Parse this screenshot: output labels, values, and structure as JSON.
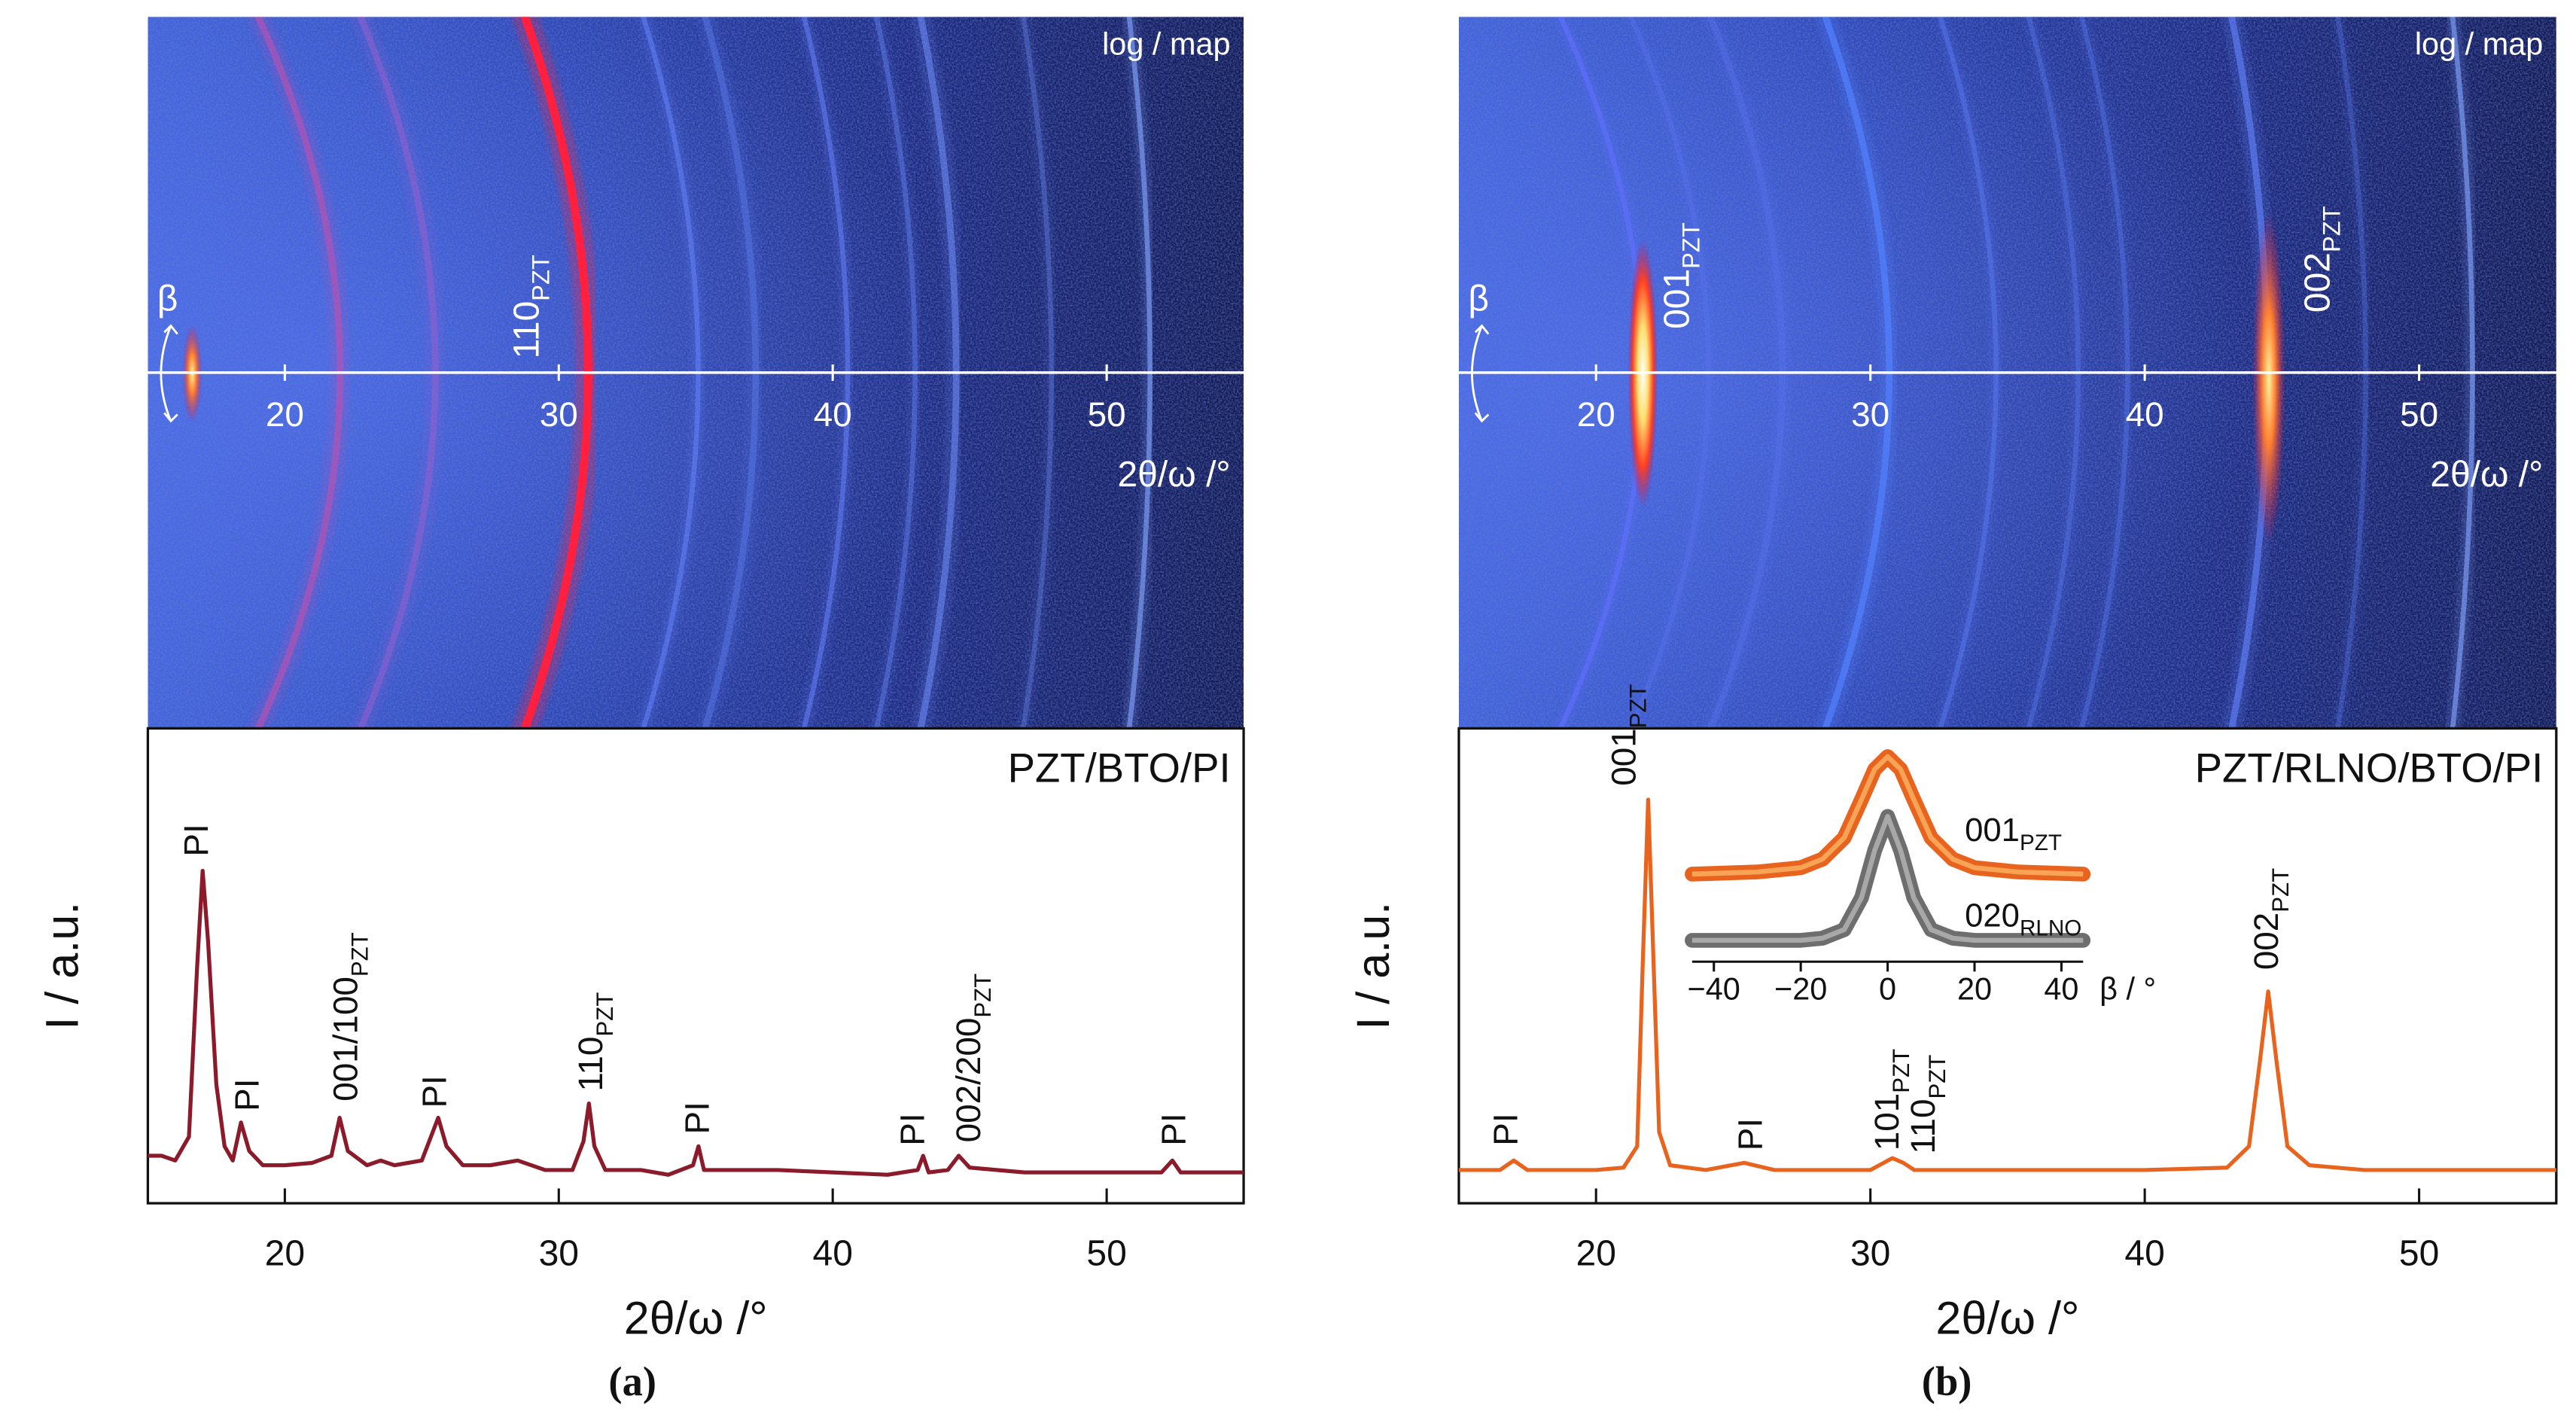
{
  "chart_data": [
    {
      "type": "line",
      "title": "PZT/BTO/PI",
      "xlabel": "2θ/ω /°",
      "ylabel": "I / a.u.",
      "xlim": [
        15,
        55
      ],
      "ylim": [
        0,
        100
      ],
      "xticks": [
        20,
        30,
        40,
        50
      ],
      "color": "#8b1a2a",
      "x": [
        15,
        15.5,
        16,
        16.5,
        16.8,
        17.0,
        17.2,
        17.5,
        17.8,
        18.1,
        18.4,
        18.7,
        19.2,
        20,
        21,
        21.7,
        22,
        22.3,
        23,
        23.5,
        24,
        25,
        25.4,
        25.6,
        25.9,
        26.5,
        27.5,
        28.5,
        29.5,
        30.5,
        30.9,
        31.1,
        31.3,
        31.7,
        33,
        34,
        34.9,
        35.1,
        35.3,
        37,
        38,
        40,
        42,
        43.1,
        43.3,
        43.5,
        44.2,
        44.6,
        45,
        47,
        50,
        52,
        52.4,
        52.7,
        55
      ],
      "values": [
        10,
        10,
        9,
        14,
        50,
        70,
        55,
        25,
        12,
        9,
        17,
        11,
        8,
        8,
        8.5,
        10,
        18,
        11,
        8,
        9,
        8,
        9,
        15,
        18,
        12,
        8,
        8,
        9,
        7,
        7,
        13,
        21,
        12,
        7,
        7,
        6,
        8,
        12,
        7,
        7,
        7,
        6.5,
        6,
        7,
        10,
        6.5,
        7,
        10,
        7.5,
        6.5,
        6.5,
        6.5,
        9,
        6.5,
        6.5
      ],
      "annotations": [
        {
          "text": "PI"
        },
        {
          "text": "PI"
        },
        {
          "text": "001/100",
          "sub": "PZT"
        },
        {
          "text": "PI"
        },
        {
          "text": "110",
          "sub": "PZT"
        },
        {
          "text": "PI"
        },
        {
          "text": "PI"
        },
        {
          "text": "002/200",
          "sub": "PZT"
        },
        {
          "text": "PI"
        }
      ]
    },
    {
      "type": "line",
      "title": "PZT/RLNO/BTO/PI",
      "xlabel": "2θ/ω /°",
      "ylabel": "I / a.u.",
      "xlim": [
        15,
        55
      ],
      "ylim": [
        0,
        100
      ],
      "xticks": [
        20,
        30,
        40,
        50
      ],
      "color": "#e8641e",
      "x": [
        15,
        16.5,
        17,
        17.5,
        20,
        21,
        21.5,
        21.7,
        21.9,
        22.1,
        22.3,
        22.7,
        24,
        25.4,
        26.5,
        30,
        30.8,
        31.2,
        31.6,
        35,
        40,
        43,
        43.8,
        44.2,
        44.5,
        44.8,
        45.2,
        46,
        48,
        55
      ],
      "values": [
        7,
        7,
        9,
        7,
        7,
        7.5,
        12,
        50,
        85,
        50,
        15,
        8,
        7,
        8.5,
        7,
        7,
        9.5,
        8.5,
        7,
        7,
        7,
        7.5,
        12,
        30,
        44.6,
        30,
        12,
        8,
        7,
        7
      ],
      "annotations": [
        {
          "text": "PI"
        },
        {
          "text": "001",
          "sub": "PZT"
        },
        {
          "text": "PI"
        },
        {
          "text": "101",
          "sub": "PZT"
        },
        {
          "text": "110",
          "sub": "PZT"
        },
        {
          "text": "002",
          "sub": "PZT"
        }
      ]
    },
    {
      "type": "line",
      "xlabel": "β / °",
      "xlim": [
        -45,
        45
      ],
      "ylim": [
        0,
        100
      ],
      "xticks": [
        {
          "value": -40,
          "label": "−40"
        },
        {
          "value": -20,
          "label": "−20"
        },
        0,
        20,
        40
      ],
      "x": [
        -45,
        -30,
        -20,
        -15,
        -10,
        -6,
        -3,
        0,
        3,
        6,
        10,
        15,
        20,
        30,
        45
      ],
      "series": [
        {
          "label": {
            "text": "001",
            "sub": "PZT"
          },
          "color": "#e8641e",
          "values": [
            41,
            42,
            44,
            48,
            58,
            76,
            90,
            96,
            90,
            76,
            58,
            48,
            44,
            42,
            41
          ]
        },
        {
          "label": {
            "text": "020",
            "sub": "RLNO"
          },
          "color": "#6e6e6e",
          "values": [
            10,
            10,
            10,
            11,
            15,
            30,
            52,
            68,
            52,
            30,
            15,
            11,
            10,
            10,
            10
          ]
        }
      ]
    }
  ],
  "maps": [
    {
      "note": "log / map",
      "beta": "β",
      "xlabel": "2θ/ω /°",
      "xlim": [
        15,
        55
      ],
      "xticks": [
        20,
        30,
        40,
        50
      ],
      "annotations": [
        {
          "text": "110",
          "sub": "PZT"
        }
      ]
    },
    {
      "note": "log / map",
      "beta": "β",
      "xlabel": "2θ/ω /°",
      "xlim": [
        15,
        55
      ],
      "xticks": [
        20,
        30,
        40,
        50
      ],
      "annotations": [
        {
          "text": "001",
          "sub": "PZT"
        },
        {
          "text": "002",
          "sub": "PZT"
        }
      ]
    }
  ],
  "captions": [
    "(a)",
    "(b)"
  ]
}
